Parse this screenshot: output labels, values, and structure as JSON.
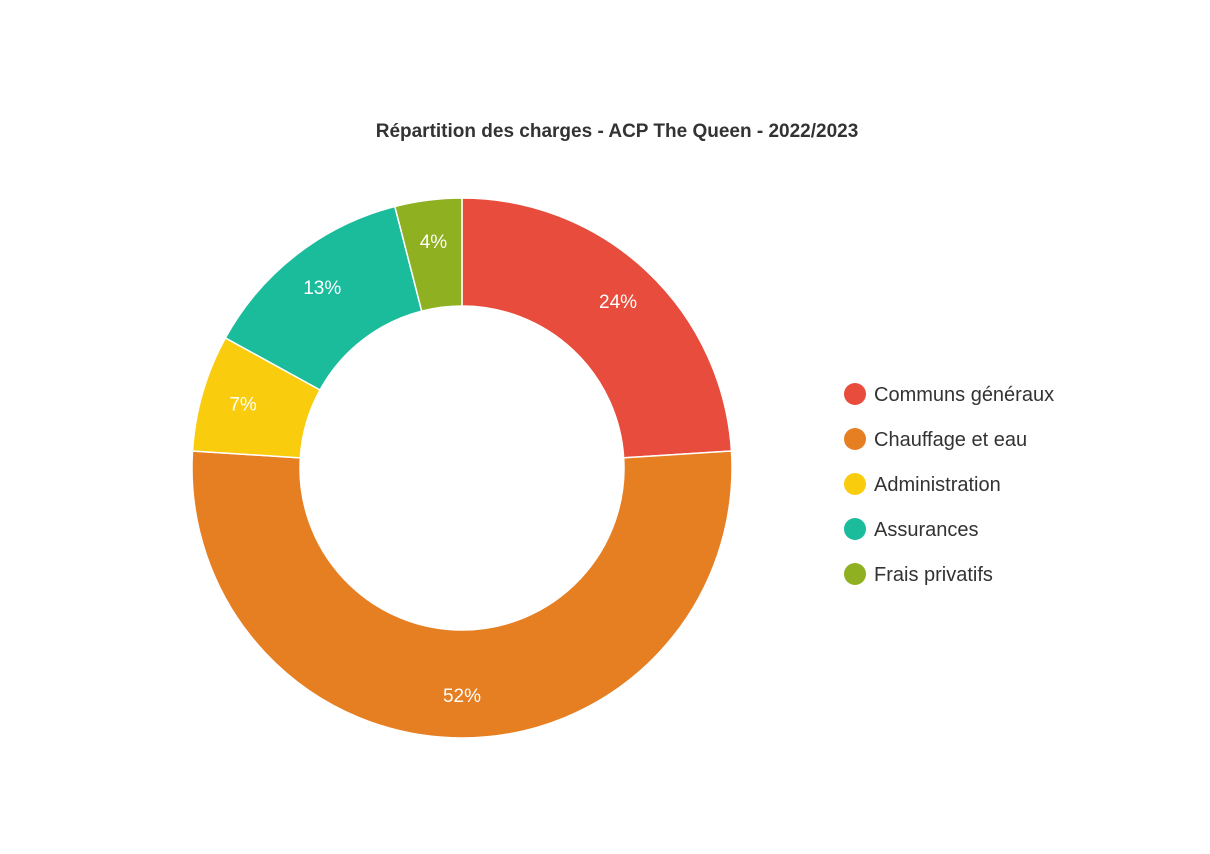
{
  "chart_data": {
    "type": "pie",
    "variant": "donut",
    "title": "Répartition des charges - ACP The Queen - 2022/2023",
    "legend_position": "right",
    "slices": [
      {
        "label": "Communs généraux",
        "value": 24,
        "display": "24%",
        "color": "#e74c3c"
      },
      {
        "label": "Chauffage et eau",
        "value": 52,
        "display": "52%",
        "color": "#e67e22"
      },
      {
        "label": "Administration",
        "value": 7,
        "display": "7%",
        "color": "#f9cc0d"
      },
      {
        "label": "Assurances",
        "value": 13,
        "display": "13%",
        "color": "#1abc9c"
      },
      {
        "label": "Frais privatifs",
        "value": 4,
        "display": "4%",
        "color": "#8eb021"
      }
    ]
  }
}
